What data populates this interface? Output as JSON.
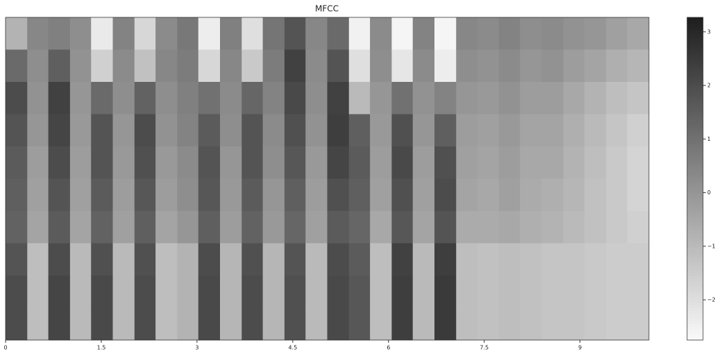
{
  "chart_data": {
    "type": "heatmap",
    "title": "MFCC",
    "x": [
      0,
      0.34,
      0.67,
      1.01,
      1.34,
      1.68,
      2.02,
      2.35,
      2.69,
      3.02,
      3.36,
      3.7,
      4.03,
      4.37,
      4.7,
      5.04,
      5.38,
      5.71,
      6.05,
      6.38,
      6.72,
      7.06,
      7.39,
      7.73,
      8.06,
      8.4,
      8.74,
      9.07,
      9.41,
      9.74
    ],
    "xlim": [
      0,
      10.08
    ],
    "xticks": [
      0,
      1.5,
      3,
      4.5,
      6,
      7.5,
      9
    ],
    "values": [
      [
        -0.8,
        1.2,
        2,
        1.8,
        1.6,
        1.5,
        1.4,
        1.8,
        2,
        2
      ],
      [
        0.4,
        0.2,
        0.1,
        0,
        -0.2,
        -0.3,
        -0.4,
        -1.1,
        -1.1,
        -1.1
      ],
      [
        0.6,
        1.5,
        2.3,
        2.2,
        2,
        1.8,
        1.6,
        2,
        2.2,
        2.2
      ],
      [
        0.2,
        0.1,
        0,
        -0.1,
        -0.2,
        -0.3,
        -0.4,
        -1,
        -1,
        -1
      ],
      [
        -2.3,
        -1.6,
        1.2,
        1.8,
        1.8,
        1.6,
        1.4,
        1.9,
        2.1,
        2.1
      ],
      [
        0.5,
        0.3,
        0.2,
        0,
        -0.1,
        -0.2,
        -0.3,
        -1,
        -1,
        -1
      ],
      [
        -1.8,
        -1.2,
        1.4,
        2,
        1.9,
        1.7,
        1.5,
        1.9,
        2,
        2
      ],
      [
        0.3,
        0.4,
        0.2,
        0.1,
        -0.1,
        -0.2,
        -0.4,
        -1.1,
        -1.1,
        -1.1
      ],
      [
        0.8,
        0.7,
        0.6,
        0.5,
        0.3,
        0.2,
        0,
        -0.8,
        -0.8,
        -0.8
      ],
      [
        -2.4,
        -1.8,
        1,
        1.6,
        1.8,
        1.7,
        1.5,
        2,
        2.1,
        2.1
      ],
      [
        0.6,
        0.4,
        0.3,
        0.2,
        0,
        -0.1,
        -0.2,
        -0.9,
        -0.9,
        -0.9
      ],
      [
        -2,
        -1.4,
        1.3,
        1.8,
        1.8,
        1.6,
        1.4,
        1.9,
        2,
        2
      ],
      [
        0.9,
        0.7,
        0.5,
        0.3,
        0.2,
        0,
        -0.1,
        -0.9,
        -0.9,
        -0.9
      ],
      [
        1.8,
        2.3,
        2.1,
        1.9,
        1.7,
        1.5,
        1.3,
        1.8,
        1.9,
        1.9
      ],
      [
        0.4,
        0.3,
        0.2,
        0.1,
        -0.1,
        -0.2,
        -0.3,
        -1,
        -1,
        -1
      ],
      [
        1.2,
        1.8,
        2.3,
        2.4,
        2.2,
        1.9,
        1.6,
        2,
        2.1,
        2.1
      ],
      [
        -2.5,
        -2,
        -1,
        1.5,
        1.6,
        1.5,
        1.3,
        1.6,
        1.7,
        1.7
      ],
      [
        0.3,
        0.2,
        0,
        -0.1,
        -0.2,
        -0.3,
        -0.5,
        -1.1,
        -1.1,
        -1.1
      ],
      [
        -2.6,
        -2.2,
        1,
        1.9,
        2.1,
        1.9,
        1.7,
        2.3,
        2.4,
        2.4
      ],
      [
        0.5,
        0.3,
        0.1,
        0,
        -0.2,
        -0.3,
        -0.4,
        -1,
        -1,
        -1
      ],
      [
        -2.6,
        -2.4,
        0.5,
        1.5,
        1.9,
        2,
        1.8,
        2.4,
        2.5,
        2.5
      ],
      [
        0.4,
        0.2,
        0,
        -0.2,
        -0.3,
        -0.4,
        -0.6,
        -1.1,
        -1.1,
        -1.1
      ],
      [
        0.3,
        0.1,
        -0.1,
        -0.3,
        -0.4,
        -0.5,
        -0.6,
        -1.2,
        -1.2,
        -1.2
      ],
      [
        0.5,
        0.3,
        0.1,
        -0.1,
        -0.2,
        -0.3,
        -0.5,
        -1.1,
        -1.1,
        -1.1
      ],
      [
        0.2,
        0,
        -0.2,
        -0.4,
        -0.5,
        -0.6,
        -0.7,
        -1.2,
        -1.2,
        -1.2
      ],
      [
        0.3,
        0.1,
        -0.2,
        -0.4,
        -0.5,
        -0.7,
        -0.8,
        -1.3,
        -1.3,
        -1.3
      ],
      [
        0.1,
        -0.2,
        -0.5,
        -0.7,
        -0.8,
        -0.9,
        -1,
        -1.3,
        -1.3,
        -1.3
      ],
      [
        0,
        -0.4,
        -0.8,
        -1,
        -1.1,
        -1.2,
        -1.2,
        -1.4,
        -1.4,
        -1.4
      ],
      [
        -0.3,
        -0.7,
        -1.1,
        -1.3,
        -1.4,
        -1.4,
        -1.4,
        -1.5,
        -1.5,
        -1.5
      ],
      [
        -0.5,
        -0.9,
        -1.3,
        -1.6,
        -1.7,
        -1.7,
        -1.6,
        -1.5,
        -1.5,
        -1.5
      ]
    ],
    "clim": [
      -2.75,
      3.27
    ],
    "cticks": [
      {
        "value": -2,
        "label": "−2"
      },
      {
        "value": -1,
        "label": "−1"
      },
      0,
      1,
      2,
      3
    ],
    "colormap": [
      "#fafafa",
      "#1e1e1e"
    ]
  }
}
